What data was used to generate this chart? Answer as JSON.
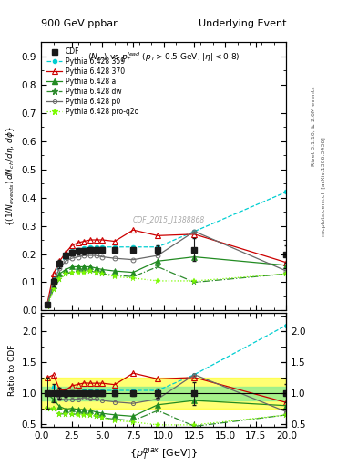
{
  "title_left": "900 GeV ppbar",
  "title_right": "Underlying Event",
  "inner_title": "$\\langle N_{ch}\\rangle$ vs $p_T^{lead}$ ($p_T > 0.5$ GeV, $|\\eta| < 0.8$)",
  "ylabel_main": "$(1/N_{events}) dN_{ch}/d\\eta d\\phi$",
  "ylabel_ratio": "Ratio to CDF",
  "xlabel": "$\\{p_T^{max}$ [GeV]$\\}$",
  "watermark": "CDF_2015_I1388868",
  "ylim_main": [
    0.0,
    0.95
  ],
  "ylim_ratio": [
    0.45,
    2.3
  ],
  "xlim": [
    0,
    20
  ],
  "cdf_x": [
    0.5,
    1.0,
    1.5,
    2.0,
    2.5,
    3.0,
    3.5,
    4.0,
    4.5,
    5.0,
    6.0,
    7.5,
    9.5,
    12.5,
    20.0
  ],
  "cdf_y": [
    0.02,
    0.1,
    0.165,
    0.195,
    0.205,
    0.21,
    0.21,
    0.215,
    0.215,
    0.215,
    0.215,
    0.215,
    0.215,
    0.215,
    0.2
  ],
  "cdf_yerr": [
    0.005,
    0.015,
    0.015,
    0.01,
    0.01,
    0.01,
    0.01,
    0.01,
    0.01,
    0.01,
    0.01,
    0.01,
    0.015,
    0.04,
    0.03
  ],
  "p359_x": [
    0.5,
    1.0,
    1.5,
    2.0,
    2.5,
    3.0,
    3.5,
    4.0,
    4.5,
    5.0,
    6.0,
    7.5,
    9.5,
    12.5,
    20.0
  ],
  "p359_y": [
    0.02,
    0.11,
    0.165,
    0.19,
    0.21,
    0.215,
    0.22,
    0.225,
    0.225,
    0.225,
    0.225,
    0.225,
    0.225,
    0.28,
    0.42
  ],
  "p370_x": [
    0.5,
    1.0,
    1.5,
    2.0,
    2.5,
    3.0,
    3.5,
    4.0,
    4.5,
    5.0,
    6.0,
    7.5,
    9.5,
    12.5,
    20.0
  ],
  "p370_y": [
    0.025,
    0.13,
    0.175,
    0.205,
    0.23,
    0.24,
    0.245,
    0.25,
    0.25,
    0.25,
    0.245,
    0.285,
    0.265,
    0.27,
    0.17
  ],
  "pa_x": [
    0.5,
    1.0,
    1.5,
    2.0,
    2.5,
    3.0,
    3.5,
    4.0,
    4.5,
    5.0,
    6.0,
    7.5,
    9.5,
    12.5,
    20.0
  ],
  "pa_y": [
    0.02,
    0.09,
    0.13,
    0.145,
    0.155,
    0.155,
    0.155,
    0.155,
    0.15,
    0.145,
    0.14,
    0.135,
    0.175,
    0.19,
    0.16
  ],
  "pdw_x": [
    0.5,
    1.0,
    1.5,
    2.0,
    2.5,
    3.0,
    3.5,
    4.0,
    4.5,
    5.0,
    6.0,
    7.5,
    9.5,
    12.5,
    20.0
  ],
  "pdw_y": [
    0.015,
    0.075,
    0.11,
    0.13,
    0.135,
    0.14,
    0.14,
    0.14,
    0.135,
    0.13,
    0.125,
    0.12,
    0.155,
    0.1,
    0.13
  ],
  "pp0_x": [
    0.5,
    1.0,
    1.5,
    2.0,
    2.5,
    3.0,
    3.5,
    4.0,
    4.5,
    5.0,
    6.0,
    7.5,
    9.5,
    12.5,
    20.0
  ],
  "pp0_y": [
    0.02,
    0.1,
    0.15,
    0.175,
    0.185,
    0.19,
    0.195,
    0.195,
    0.195,
    0.19,
    0.185,
    0.18,
    0.195,
    0.28,
    0.14
  ],
  "pq2o_x": [
    0.5,
    1.0,
    1.5,
    2.0,
    2.5,
    3.0,
    3.5,
    4.0,
    4.5,
    5.0,
    6.0,
    7.5,
    9.5,
    12.5,
    20.0
  ],
  "pq2o_y": [
    0.015,
    0.075,
    0.11,
    0.13,
    0.135,
    0.135,
    0.135,
    0.14,
    0.135,
    0.13,
    0.12,
    0.115,
    0.105,
    0.105,
    0.13
  ],
  "color_cdf": "#1a1a1a",
  "color_359": "#00ced1",
  "color_370": "#cc0000",
  "color_a": "#228B22",
  "color_dw": "#2e8b2e",
  "color_p0": "#696969",
  "color_q2o": "#7cfc00",
  "ratio_band_yellow": 0.25,
  "ratio_band_green": 0.11,
  "yticks_main": [
    0.0,
    0.1,
    0.2,
    0.3,
    0.4,
    0.5,
    0.6,
    0.7,
    0.8,
    0.9
  ],
  "yticks_ratio": [
    0.5,
    1.0,
    1.5,
    2.0
  ]
}
